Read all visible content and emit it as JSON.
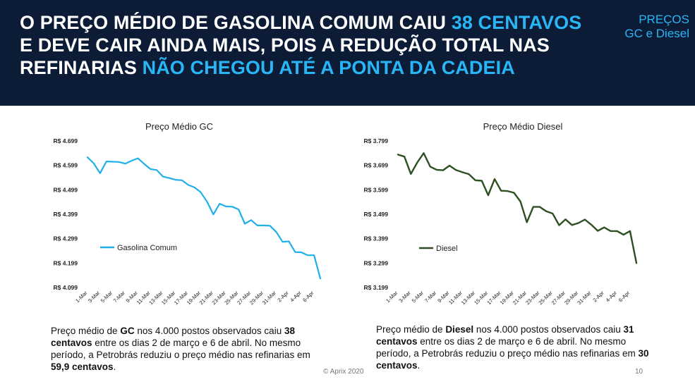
{
  "header": {
    "line1_a": "O PREÇO MÉDIO DE GASOLINA COMUM CAIU ",
    "line1_b": "38 CENTAVOS",
    "line2": "E DEVE CAIR AINDA MAIS, POIS A REDUÇÃO TOTAL NAS",
    "line3_a": "REFINARIAS ",
    "line3_b": "NÃO CHEGOU ATÉ A PONTA DA CADEIA",
    "tag_line1": "PREÇOS",
    "tag_line2": "GC e Diesel"
  },
  "colors": {
    "header_bg": "#0c1b36",
    "accent": "#29b6f6",
    "gc_line": "#1fb0ec",
    "diesel_line": "#2d4f22"
  },
  "chart_data": [
    {
      "type": "line",
      "title": "Preço Médio GC",
      "ylim": [
        4.099,
        4.699
      ],
      "yticks": [
        "R$ 4.699",
        "R$ 4.599",
        "R$ 4.499",
        "R$ 4.399",
        "R$ 4.299",
        "R$ 4.199",
        "R$ 4.099"
      ],
      "xticks": [
        "1-Mar",
        "3-Mar",
        "5-Mar",
        "7-Mar",
        "9-Mar",
        "11-Mar",
        "13-Mar",
        "15-Mar",
        "17-Mar",
        "19-Mar",
        "21-Mar",
        "23-Mar",
        "25-Mar",
        "27-Mar",
        "29-Mar",
        "31-Mar",
        "2-Apr",
        "4-Apr",
        "6-Apr"
      ],
      "series": [
        {
          "name": "Gasolina Comum",
          "values": [
            4.632,
            4.607,
            4.567,
            4.615,
            4.614,
            4.613,
            4.606,
            4.618,
            4.628,
            4.605,
            4.584,
            4.58,
            4.553,
            4.547,
            4.54,
            4.538,
            4.519,
            4.509,
            4.489,
            4.45,
            4.398,
            4.442,
            4.431,
            4.43,
            4.419,
            4.36,
            4.375,
            4.353,
            4.353,
            4.352,
            4.326,
            4.286,
            4.288,
            4.244,
            4.243,
            4.231,
            4.231,
            4.136
          ]
        }
      ]
    },
    {
      "type": "line",
      "title": "Preço Médio Diesel",
      "ylim": [
        3.199,
        3.799
      ],
      "yticks": [
        "R$ 3.799",
        "R$ 3.699",
        "R$ 3.599",
        "R$ 3.499",
        "R$ 3.399",
        "R$ 3.299",
        "R$ 3.199"
      ],
      "xticks": [
        "1-Mar",
        "3-Mar",
        "5-Mar",
        "7-Mar",
        "9-Mar",
        "11-Mar",
        "13-Mar",
        "15-Mar",
        "17-Mar",
        "19-Mar",
        "21-Mar",
        "23-Mar",
        "25-Mar",
        "27-Mar",
        "29-Mar",
        "31-Mar",
        "2-Apr",
        "4-Apr",
        "6-Apr"
      ],
      "series": [
        {
          "name": "Diesel",
          "values": [
            3.743,
            3.735,
            3.664,
            3.711,
            3.749,
            3.694,
            3.681,
            3.679,
            3.698,
            3.68,
            3.671,
            3.663,
            3.638,
            3.636,
            3.577,
            3.643,
            3.595,
            3.594,
            3.587,
            3.551,
            3.466,
            3.529,
            3.529,
            3.511,
            3.502,
            3.454,
            3.478,
            3.455,
            3.463,
            3.477,
            3.456,
            3.431,
            3.445,
            3.43,
            3.43,
            3.415,
            3.43,
            3.299
          ]
        }
      ]
    }
  ],
  "captions": {
    "gc": {
      "p1": "Preço médio de ",
      "b1": "GC",
      "p2": " nos 4.000 postos observados caiu ",
      "b2": "38 centavos",
      "p3": " entre os dias 2 de março e 6 de abril. No mesmo período, a Petrobrás reduziu o preço médio nas refinarias em ",
      "b3": "59,9 centavos",
      "p4": "."
    },
    "diesel": {
      "p1": "Preço médio de ",
      "b1": "Diesel",
      "p2": " nos 4.000 postos observados caiu ",
      "b2": "31 centavos",
      "p3": " entre os dias 2 de março e 6 de abril. No mesmo período, a Petrobrás reduziu o preço médio nas refinarias em ",
      "b3": "30 centavos",
      "p4": "."
    }
  },
  "footer": {
    "copyright": "© Aprix 2020",
    "page": "10"
  }
}
